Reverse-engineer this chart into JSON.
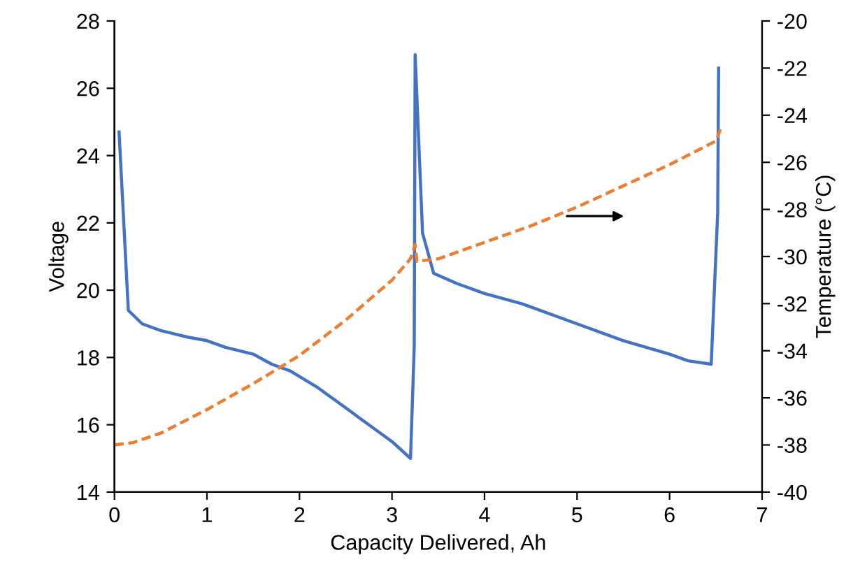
{
  "chart_data": {
    "type": "line",
    "xlabel": "Capacity Delivered, Ah",
    "ylabel": "Voltage",
    "y2label": "Temperature (°C)",
    "xlim": [
      0,
      7
    ],
    "xticks": [
      0,
      1,
      2,
      3,
      4,
      5,
      6,
      7
    ],
    "ylim": [
      14,
      28
    ],
    "yticks": [
      14,
      16,
      18,
      20,
      22,
      24,
      26,
      28
    ],
    "y2lim": [
      -40,
      -20
    ],
    "y2ticks": [
      -40,
      -38,
      -36,
      -34,
      -32,
      -30,
      -28,
      -26,
      -24,
      -22,
      -20
    ],
    "grid": false,
    "legend": false,
    "marker": "none",
    "series": [
      {
        "color": "#4472c4",
        "line_style": "solid",
        "x": [
          0.05,
          0.15,
          0.3,
          0.5,
          0.8,
          1.0,
          1.2,
          1.5,
          1.7,
          1.9,
          2.2,
          2.5,
          2.8,
          3.0,
          3.2,
          3.24,
          3.25,
          3.33,
          3.45,
          3.7,
          4.0,
          4.4,
          5.0,
          5.5,
          6.0,
          6.2,
          6.45,
          6.52,
          6.53
        ],
        "values": [
          24.7,
          19.4,
          19.0,
          18.8,
          18.6,
          18.5,
          18.3,
          18.1,
          17.8,
          17.6,
          17.1,
          16.5,
          15.9,
          15.5,
          15.0,
          18.3,
          27.0,
          21.7,
          20.5,
          20.2,
          19.9,
          19.6,
          19.0,
          18.5,
          18.1,
          17.9,
          17.8,
          22.3,
          26.6
        ]
      },
      {
        "color": "#ed7d31",
        "line_style": "dashed",
        "axis": "y2",
        "x": [
          0.0,
          0.2,
          0.5,
          1.0,
          1.5,
          2.0,
          2.5,
          3.0,
          3.2,
          3.25,
          3.27,
          3.5,
          4.0,
          4.5,
          5.0,
          5.5,
          6.0,
          6.5,
          6.55
        ],
        "values": [
          -38.0,
          -37.9,
          -37.5,
          -36.5,
          -35.4,
          -34.2,
          -32.7,
          -31.0,
          -30.1,
          -29.5,
          -30.2,
          -30.1,
          -29.4,
          -28.7,
          -27.9,
          -27.0,
          -26.1,
          -25.1,
          -24.6
        ]
      }
    ]
  }
}
